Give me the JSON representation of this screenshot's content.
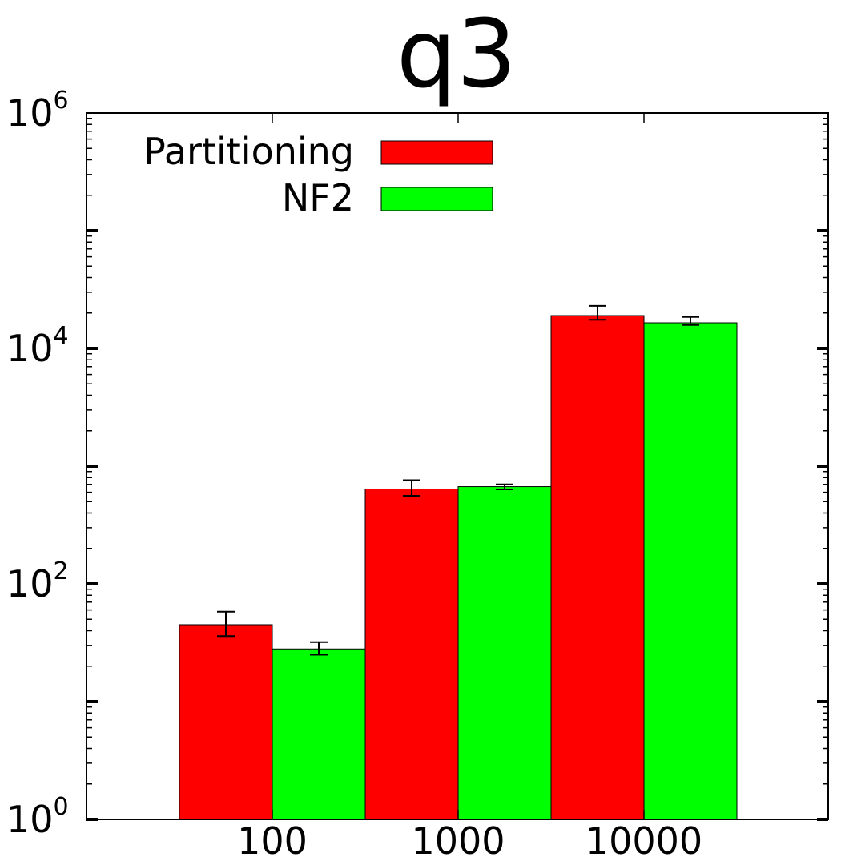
{
  "chart_data": {
    "type": "bar",
    "title": "q3",
    "xlabel": "",
    "ylabel": "",
    "categories": [
      "100",
      "1000",
      "10000"
    ],
    "y_scale": "log",
    "ylim": [
      1,
      1000000
    ],
    "y_ticks": [
      {
        "value": 1,
        "base": "10",
        "exp": "0"
      },
      {
        "value": 100,
        "base": "10",
        "exp": "2"
      },
      {
        "value": 10000,
        "base": "10",
        "exp": "4"
      },
      {
        "value": 1000000,
        "base": "10",
        "exp": "6"
      }
    ],
    "series": [
      {
        "name": "Partitioning",
        "color": "#ff0000",
        "values": [
          45,
          640,
          19000
        ],
        "error_low": [
          36,
          560,
          17500
        ],
        "error_high": [
          58,
          760,
          23000
        ]
      },
      {
        "name": "NF2",
        "color": "#00ff00",
        "values": [
          28,
          670,
          16500
        ],
        "error_low": [
          25,
          635,
          15800
        ],
        "error_high": [
          32,
          700,
          18500
        ]
      }
    ],
    "legend_position": "top-left",
    "grid": false
  }
}
